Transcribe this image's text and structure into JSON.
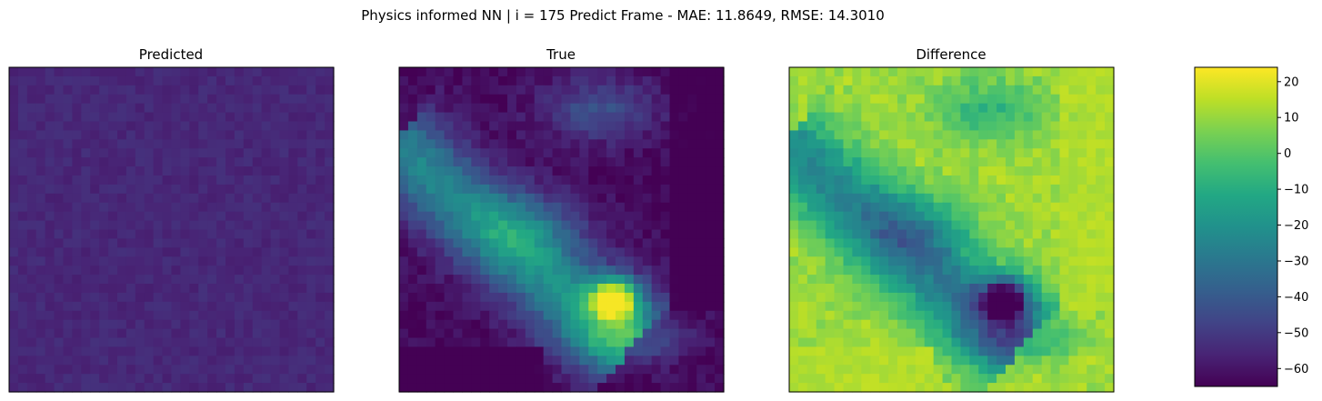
{
  "figure": {
    "suptitle": "Physics informed NN | i = 175 Predict Frame - MAE: 11.8649, RMSE: 14.3010"
  },
  "colors": {
    "colormap": "viridis",
    "axes_edge": "#000000",
    "background": "#ffffff"
  },
  "chart_data": [
    {
      "type": "heatmap",
      "title": "Predicted",
      "grid_size": [
        36,
        36
      ],
      "description_of_values": "nearly uniform low field, mean about -55",
      "value_range": [
        -60,
        -50
      ],
      "ticks": "none"
    },
    {
      "type": "heatmap",
      "title": "True",
      "grid_size": [
        36,
        36
      ],
      "value_range": [
        -65,
        23
      ],
      "ticks": "none"
    },
    {
      "type": "heatmap",
      "title": "Difference",
      "grid_size": [
        36,
        36
      ],
      "value_range": [
        -65,
        20
      ],
      "ticks": "none"
    },
    {
      "type": "colorbar",
      "cmap": "viridis",
      "vmin": -65,
      "vmax": 24,
      "ticks": [
        20,
        10,
        0,
        -10,
        -20,
        -30,
        -40,
        -50,
        -60
      ],
      "tick_labels": [
        "20",
        "10",
        "0",
        "−10",
        "−20",
        "−30",
        "−40",
        "−50",
        "−60"
      ]
    }
  ]
}
